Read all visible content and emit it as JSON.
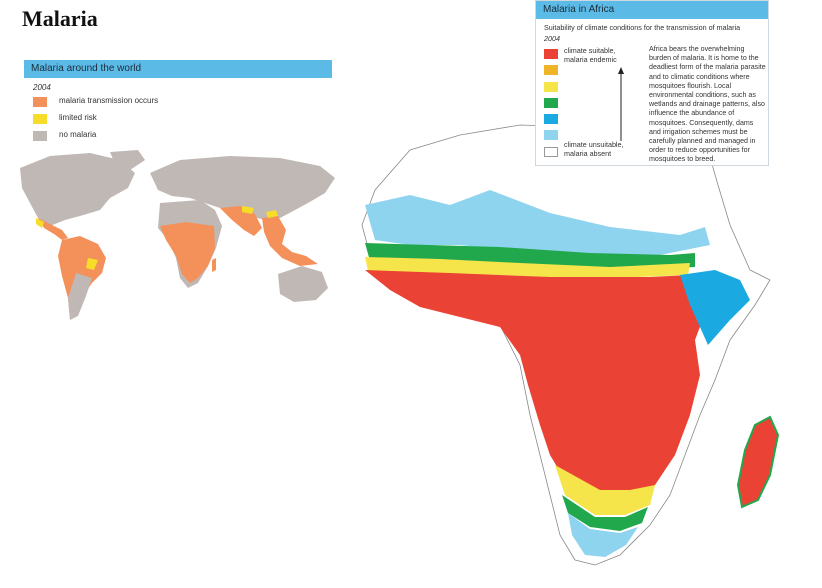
{
  "page": {
    "title": "Malaria"
  },
  "world_panel": {
    "header": "Malaria around the world",
    "year": "2004",
    "legend": [
      {
        "label": "malaria transmission occurs",
        "color": "#f4915a"
      },
      {
        "label": "limited risk",
        "color": "#f7dc2a"
      },
      {
        "label": "no malaria",
        "color": "#bfb8b5"
      }
    ]
  },
  "africa_panel": {
    "header": "Malaria in Africa",
    "subtitle": "Suitability of climate conditions for the transmission of malaria",
    "year": "2004",
    "scale_top_label": "climate suitable, malaria endemic",
    "scale_bottom_label": "climate unsuitable, malaria absent",
    "scale_colors": [
      "#ea4335",
      "#f0b429",
      "#f6e54a",
      "#22a84c",
      "#1aa9e0",
      "#8fd4ef",
      "#ffffff"
    ],
    "description": "Africa bears the overwhelming burden of malaria. It is home to the deadliest form of the malaria parasite and to climatic conditions where mosquitoes flourish. Local environmental conditions, such as wetlands and drainage patterns, also influence the abundance of mosquitoes. Consequently, dams and irrigation schemes must be carefully planned and managed in order to reduce opportunities for mosquitoes to breed."
  },
  "map_colors": {
    "land_no_malaria": "#bfb8b5",
    "transmission": "#f4915a",
    "limited": "#f7dc2a",
    "endemic": "#ea4335",
    "desert": "#ffffff",
    "low": "#8fd4ef"
  }
}
